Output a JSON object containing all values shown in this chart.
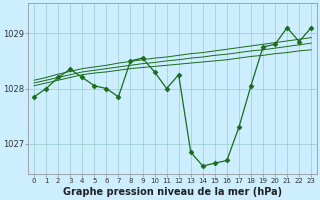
{
  "xlabel": "Graphe pression niveau de la mer (hPa)",
  "background_color": "#cceeff",
  "grid_color": "#99cccc",
  "line_color": "#1a6b1a",
  "hours": [
    0,
    1,
    2,
    3,
    4,
    5,
    6,
    7,
    8,
    9,
    10,
    11,
    12,
    13,
    14,
    15,
    16,
    17,
    18,
    19,
    20,
    21,
    22,
    23
  ],
  "pressure_main": [
    1027.85,
    1028.0,
    1028.2,
    1028.35,
    1028.2,
    1028.05,
    1028.0,
    1027.85,
    1028.5,
    1028.55,
    1028.3,
    1028.0,
    1028.25,
    1026.85,
    1026.6,
    1026.65,
    1026.7,
    1027.3,
    1028.05,
    1028.75,
    1028.8,
    1029.1,
    1028.85,
    1029.1
  ],
  "pressure_trend1": [
    1028.05,
    1028.1,
    1028.15,
    1028.2,
    1028.25,
    1028.28,
    1028.3,
    1028.33,
    1028.36,
    1028.38,
    1028.4,
    1028.42,
    1028.44,
    1028.46,
    1028.48,
    1028.5,
    1028.52,
    1028.55,
    1028.58,
    1028.6,
    1028.63,
    1028.65,
    1028.68,
    1028.7
  ],
  "pressure_trend2": [
    1028.1,
    1028.15,
    1028.2,
    1028.25,
    1028.3,
    1028.33,
    1028.36,
    1028.39,
    1028.42,
    1028.45,
    1028.47,
    1028.5,
    1028.52,
    1028.55,
    1028.57,
    1028.6,
    1028.62,
    1028.65,
    1028.68,
    1028.7,
    1028.73,
    1028.76,
    1028.79,
    1028.82
  ],
  "pressure_trend3": [
    1028.15,
    1028.2,
    1028.26,
    1028.31,
    1028.36,
    1028.39,
    1028.42,
    1028.46,
    1028.49,
    1028.52,
    1028.55,
    1028.57,
    1028.6,
    1028.63,
    1028.65,
    1028.68,
    1028.71,
    1028.74,
    1028.77,
    1028.8,
    1028.83,
    1028.86,
    1028.89,
    1028.92
  ],
  "ylim": [
    1026.45,
    1029.55
  ],
  "yticks": [
    1027.0,
    1028.0,
    1029.0
  ],
  "xlabel_fontsize": 7,
  "tick_fontsize": 6,
  "xtick_fontsize": 5
}
